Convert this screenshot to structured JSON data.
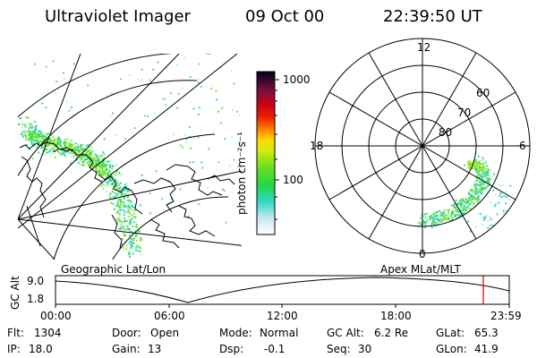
{
  "header": {
    "instrument": "Ultraviolet Imager",
    "date": "09 Oct 00",
    "time": "22:39:50 UT"
  },
  "colorbar": {
    "unit_label": "photon cm⁻²s⁻¹",
    "ticks": [
      "1000",
      "100"
    ]
  },
  "polar_plot": {
    "mlt_labels": {
      "top": "12",
      "left": "18",
      "right": "6",
      "bottom": "0"
    },
    "lat_labels": [
      "60",
      "70",
      "80"
    ]
  },
  "orbit_strip": {
    "left_label": "Geographic Lat/Lon",
    "right_label": "Apex MLat/MLT",
    "axis_title": "GC Alt",
    "y_ticks": [
      "9.0",
      "1.8"
    ],
    "time_ticks": [
      "00:00",
      "06:00",
      "12:00",
      "18:00",
      "23:59"
    ],
    "marker_color": "#cc0000"
  },
  "info": {
    "flt_label": "Flt:",
    "flt_value": "1304",
    "ip_label": "IP:",
    "ip_value": "18.0",
    "door_label": "Door:",
    "door_value": "Open",
    "gain_label": "Gain:",
    "gain_value": "13",
    "mode_label": "Mode:",
    "mode_value": "Normal",
    "dsp_label": "Dsp:",
    "dsp_value": "-0.1",
    "gcalt_label": "GC Alt:",
    "gcalt_value": "6.2 Re",
    "seq_label": "Seq:",
    "seq_value": "30",
    "glat_label": "GLat:",
    "glat_value": "65.3",
    "glon_label": "GLon:",
    "glon_value": "41.9"
  }
}
